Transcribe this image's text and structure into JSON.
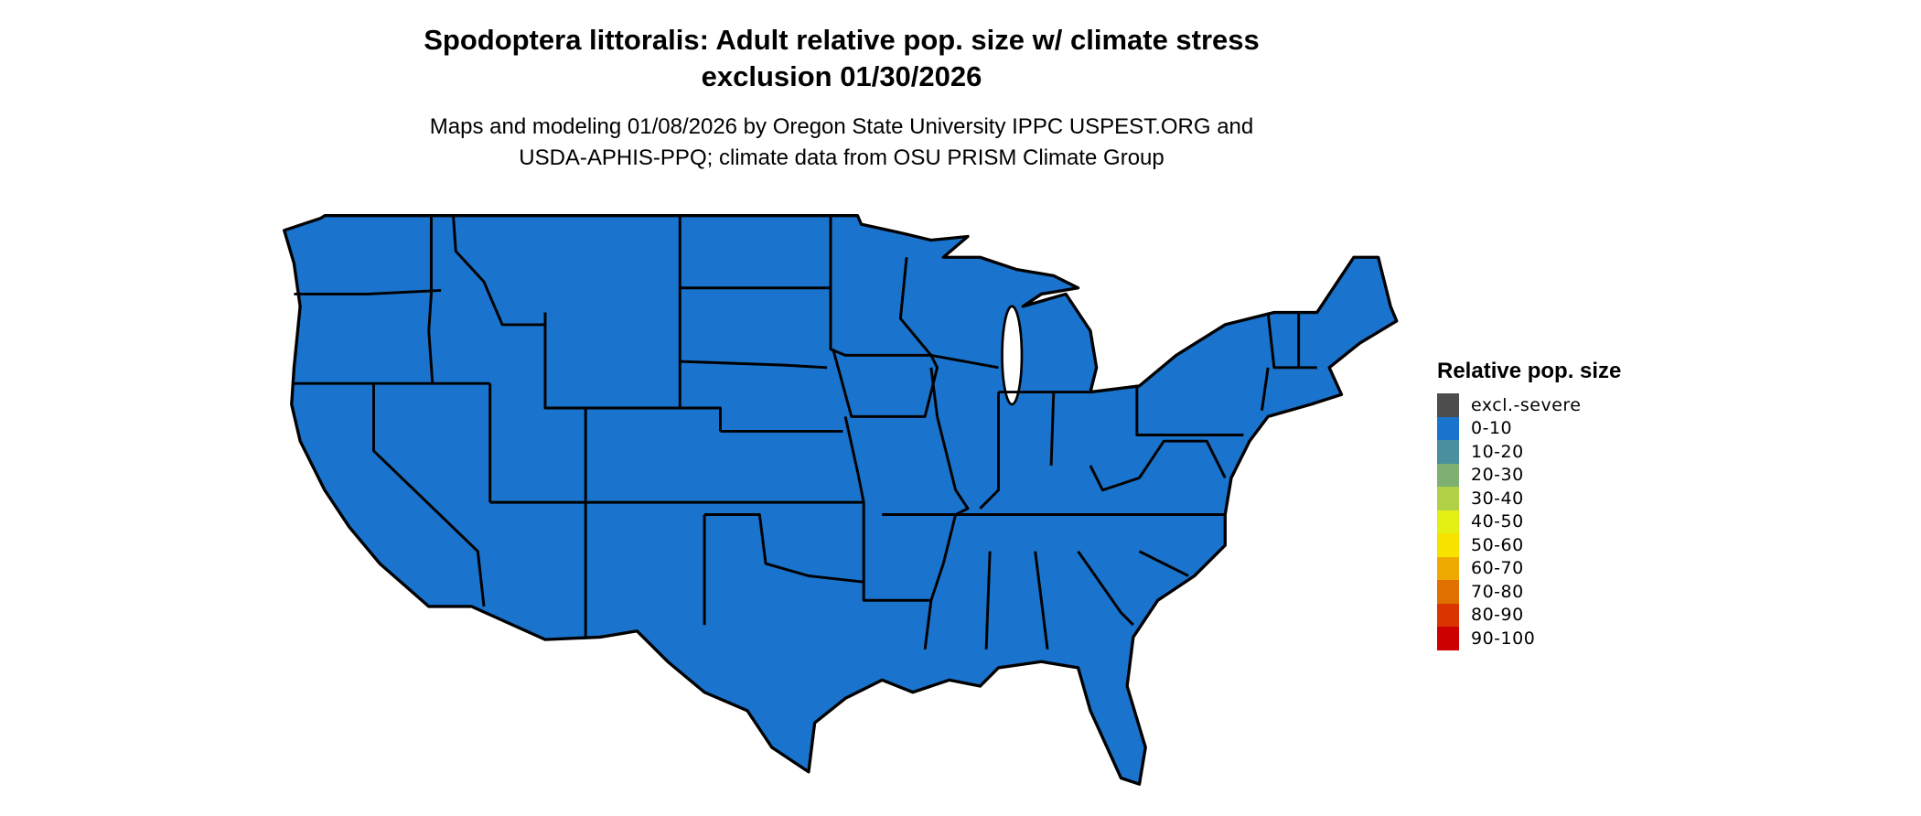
{
  "title": {
    "line1": "Spodoptera littoralis: Adult relative pop. size w/ climate stress",
    "line2": "exclusion 01/30/2026"
  },
  "subtitle": {
    "line1": "Maps and modeling 01/08/2026 by Oregon State University IPPC USPEST.ORG and",
    "line2": "USDA-APHIS-PPQ; climate data from OSU PRISM Climate Group"
  },
  "map": {
    "region": "Contiguous United States",
    "fill_class": "0-10",
    "fill_color": "#1a73cc",
    "border_color": "#000000"
  },
  "legend": {
    "title": "Relative pop. size",
    "items": [
      {
        "label": "excl.-severe",
        "color": "#4d4d4d"
      },
      {
        "label": "0-10",
        "color": "#1a73cc"
      },
      {
        "label": "10-20",
        "color": "#4a8f9e"
      },
      {
        "label": "20-30",
        "color": "#7db071"
      },
      {
        "label": "30-40",
        "color": "#b1d146"
      },
      {
        "label": "40-50",
        "color": "#e4ef14"
      },
      {
        "label": "50-60",
        "color": "#f7e200"
      },
      {
        "label": "60-70",
        "color": "#eeaa00"
      },
      {
        "label": "70-80",
        "color": "#e07000"
      },
      {
        "label": "80-90",
        "color": "#da3400"
      },
      {
        "label": "90-100",
        "color": "#cc0000"
      }
    ]
  }
}
